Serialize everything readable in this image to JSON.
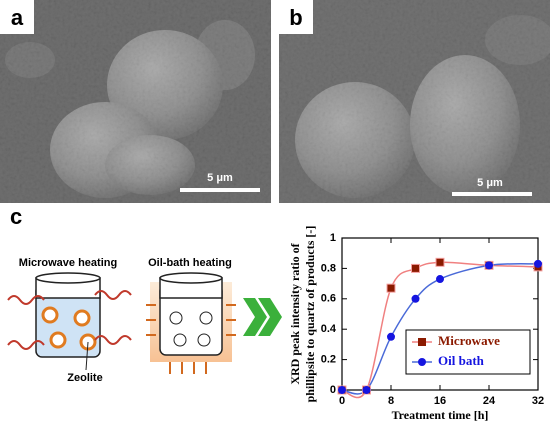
{
  "panels": [
    {
      "label": "a",
      "scale_bar": "5 μm"
    },
    {
      "label": "b",
      "scale_bar": "5 μm"
    }
  ],
  "diagram": {
    "label": "c",
    "microwave": "Microwave heating",
    "oil_bath": "Oil-bath heating",
    "zeolite": "Zeolite"
  },
  "chart_data": {
    "type": "line",
    "x_label": "Treatment time [h]",
    "y_label": [
      "XRD peak intensity ratio of",
      "phillipsite to quartz of products [-]"
    ],
    "x": [
      0,
      4,
      8,
      12,
      16,
      24,
      32
    ],
    "series": [
      {
        "name": "Microwave",
        "color": "#8b1a00",
        "line_color": "#f08080",
        "marker": "square",
        "values": [
          0,
          0,
          0.67,
          0.8,
          0.84,
          0.82,
          0.81
        ]
      },
      {
        "name": "Oil bath",
        "color": "#1515e0",
        "line_color": "#4a6ad8",
        "marker": "circle",
        "values": [
          0,
          0,
          0.35,
          0.6,
          0.73,
          0.82,
          0.83
        ]
      }
    ],
    "xlim": [
      0,
      32
    ],
    "xticks": [
      0,
      8,
      16,
      24,
      32
    ],
    "ylim": [
      0,
      1
    ],
    "yticks": [
      0,
      0.2,
      0.4,
      0.6,
      0.8,
      1
    ],
    "legend": "lower right"
  }
}
